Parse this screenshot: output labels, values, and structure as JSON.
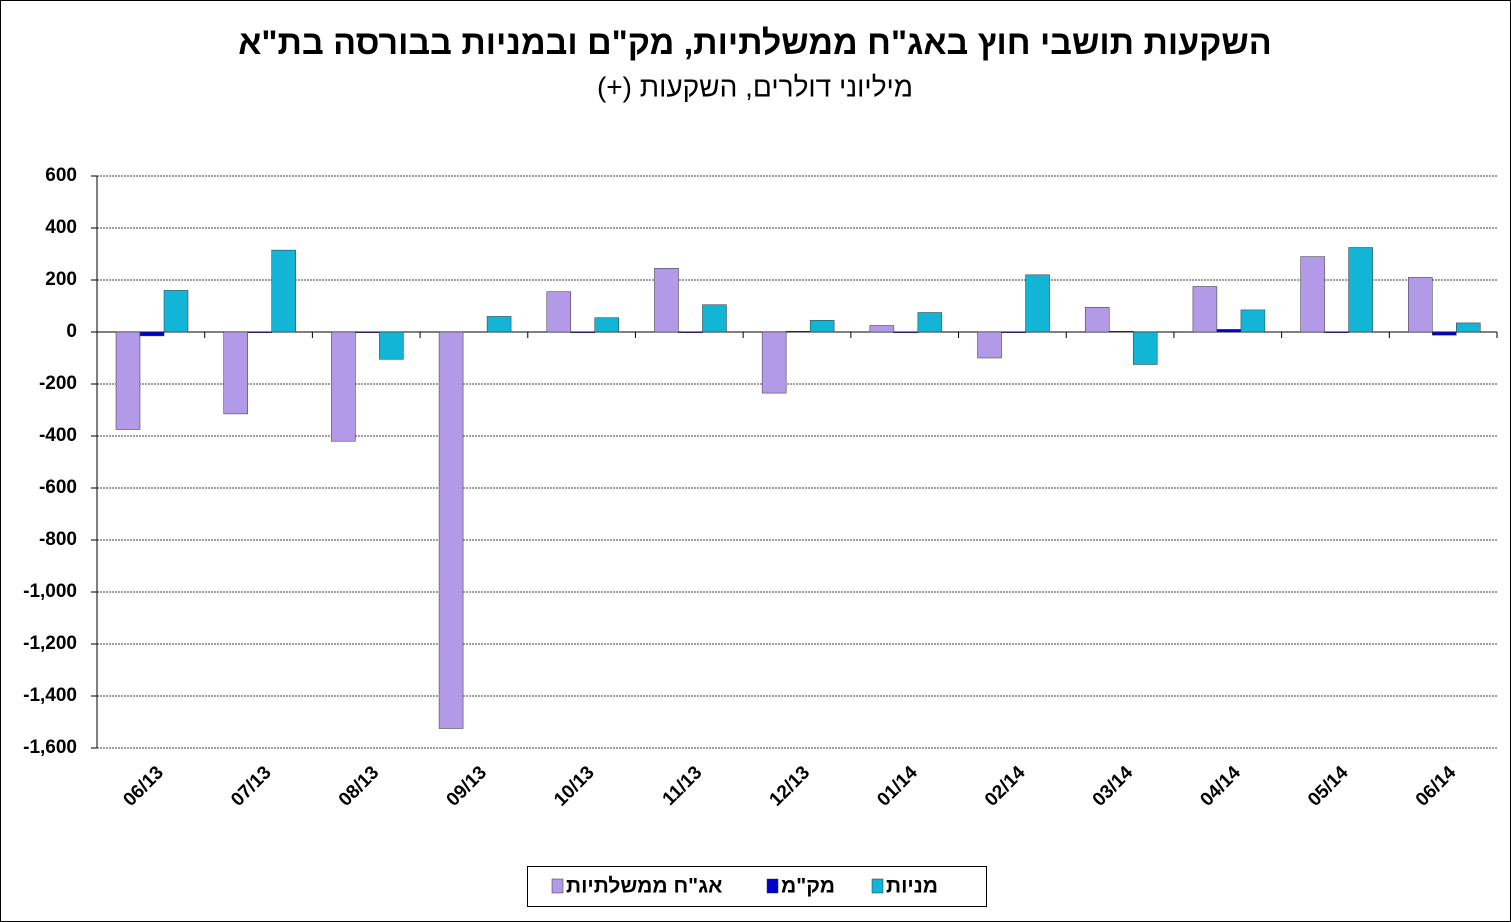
{
  "chart_data": {
    "type": "bar",
    "title": "השקעות תושבי חוץ באג\"ח ממשלתיות, מק\"ם ובמניות בבורסה בת\"א",
    "subtitle": "מיליוני דולרים, השקעות (+)",
    "categories": [
      "06/13",
      "07/13",
      "08/13",
      "09/13",
      "10/13",
      "11/13",
      "12/13",
      "01/14",
      "02/14",
      "03/14",
      "04/14",
      "05/14",
      "06/14"
    ],
    "series": [
      {
        "name": "אג\"ח ממשלתיות",
        "color": "#b39ae8",
        "values": [
          -375,
          -315,
          -420,
          -1525,
          155,
          245,
          -235,
          25,
          -100,
          95,
          175,
          290,
          210
        ]
      },
      {
        "name": "מק\"מ",
        "color": "#0000cc",
        "values": [
          -15,
          -3,
          -3,
          0,
          -3,
          -3,
          3,
          -3,
          -3,
          3,
          10,
          -3,
          -12
        ]
      },
      {
        "name": "מניות",
        "color": "#12b5d6",
        "values": [
          160,
          315,
          -105,
          60,
          55,
          105,
          45,
          75,
          220,
          -125,
          85,
          325,
          35
        ]
      }
    ],
    "ylim": [
      -1600,
      600
    ],
    "yticks": [
      600,
      400,
      200,
      0,
      -200,
      -400,
      -600,
      -800,
      {
        "value": -1000,
        "label": "-1,000"
      },
      {
        "value": -1200,
        "label": "-1,200"
      },
      {
        "value": -1400,
        "label": "-1,400"
      },
      {
        "value": -1600,
        "label": "-1,600"
      }
    ],
    "grid": true
  }
}
